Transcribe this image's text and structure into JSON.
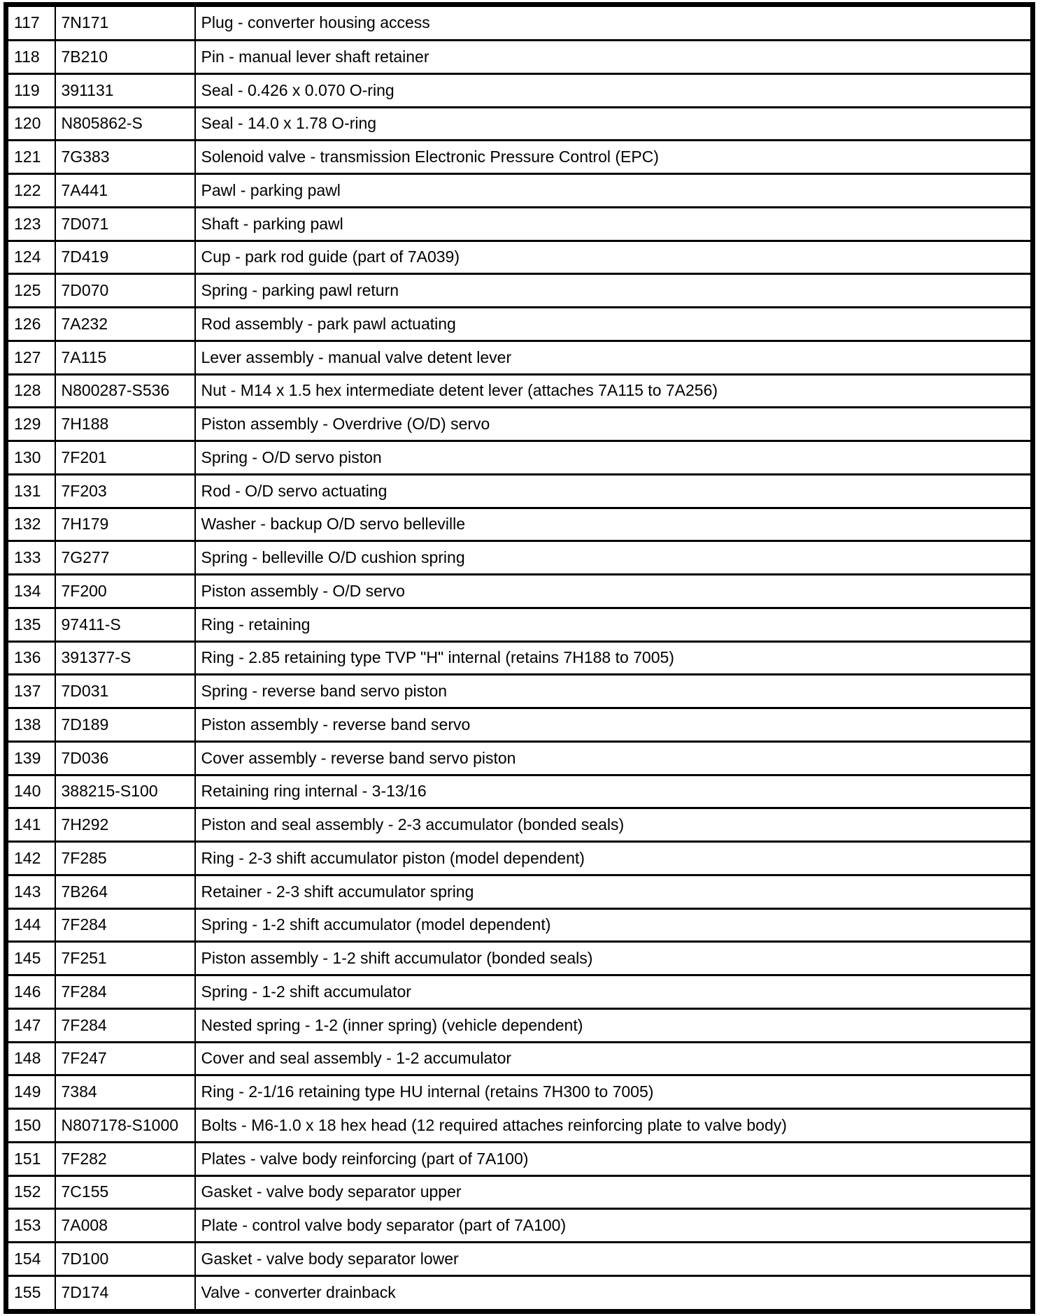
{
  "table": {
    "columns": [
      "item_number",
      "part_number",
      "description"
    ],
    "rows": [
      [
        "117",
        "7N171",
        "Plug - converter housing access"
      ],
      [
        "118",
        "7B210",
        "Pin - manual lever shaft retainer"
      ],
      [
        "119",
        "391131",
        "Seal - 0.426 x 0.070 O-ring"
      ],
      [
        "120",
        "N805862-S",
        "Seal - 14.0 x 1.78 O-ring"
      ],
      [
        "121",
        "7G383",
        "Solenoid valve - transmission Electronic Pressure Control (EPC)"
      ],
      [
        "122",
        "7A441",
        "Pawl - parking pawl"
      ],
      [
        "123",
        "7D071",
        "Shaft - parking pawl"
      ],
      [
        "124",
        "7D419",
        "Cup - park rod guide (part of 7A039)"
      ],
      [
        "125",
        "7D070",
        "Spring - parking pawl return"
      ],
      [
        "126",
        "7A232",
        "Rod assembly - park pawl actuating"
      ],
      [
        "127",
        "7A115",
        "Lever assembly - manual valve detent lever"
      ],
      [
        "128",
        "N800287-S536",
        "Nut - M14 x 1.5 hex intermediate detent lever (attaches 7A115 to 7A256)"
      ],
      [
        "129",
        "7H188",
        "Piston assembly - Overdrive (O/D) servo"
      ],
      [
        "130",
        "7F201",
        "Spring - O/D servo piston"
      ],
      [
        "131",
        "7F203",
        "Rod - O/D servo actuating"
      ],
      [
        "132",
        "7H179",
        "Washer - backup O/D servo belleville"
      ],
      [
        "133",
        "7G277",
        "Spring - belleville O/D cushion spring"
      ],
      [
        "134",
        "7F200",
        "Piston assembly - O/D servo"
      ],
      [
        "135",
        "97411-S",
        "Ring - retaining"
      ],
      [
        "136",
        "391377-S",
        "Ring - 2.85 retaining type TVP \"H\" internal (retains 7H188 to 7005)"
      ],
      [
        "137",
        "7D031",
        "Spring - reverse band servo piston"
      ],
      [
        "138",
        "7D189",
        "Piston assembly - reverse band servo"
      ],
      [
        "139",
        "7D036",
        "Cover assembly - reverse band servo piston"
      ],
      [
        "140",
        "388215-S100",
        "Retaining ring internal - 3-13/16"
      ],
      [
        "141",
        "7H292",
        "Piston and seal assembly - 2-3 accumulator (bonded seals)"
      ],
      [
        "142",
        "7F285",
        "Ring - 2-3 shift accumulator piston (model dependent)"
      ],
      [
        "143",
        "7B264",
        "Retainer - 2-3 shift accumulator spring"
      ],
      [
        "144",
        "7F284",
        "Spring - 1-2 shift accumulator (model dependent)"
      ],
      [
        "145",
        "7F251",
        "Piston assembly - 1-2 shift accumulator (bonded seals)"
      ],
      [
        "146",
        "7F284",
        "Spring - 1-2 shift accumulator"
      ],
      [
        "147",
        "7F284",
        "Nested spring - 1-2 (inner spring) (vehicle dependent)"
      ],
      [
        "148",
        "7F247",
        "Cover and seal assembly - 1-2 accumulator"
      ],
      [
        "149",
        "7384",
        "Ring - 2-1/16 retaining type HU internal (retains 7H300 to 7005)"
      ],
      [
        "150",
        "N807178-S1000",
        "Bolts - M6-1.0 x 18 hex head (12 required attaches reinforcing plate to valve body)"
      ],
      [
        "151",
        "7F282",
        "Plates - valve body reinforcing (part of 7A100)"
      ],
      [
        "152",
        "7C155",
        "Gasket - valve body separator upper"
      ],
      [
        "153",
        "7A008",
        "Plate - control valve body separator (part of 7A100)"
      ],
      [
        "154",
        "7D100",
        "Gasket - valve body separator lower"
      ],
      [
        "155",
        "7D174",
        "Valve - converter drainback"
      ]
    ],
    "ink_color": "#000000",
    "paper_color": "#ffffff"
  }
}
